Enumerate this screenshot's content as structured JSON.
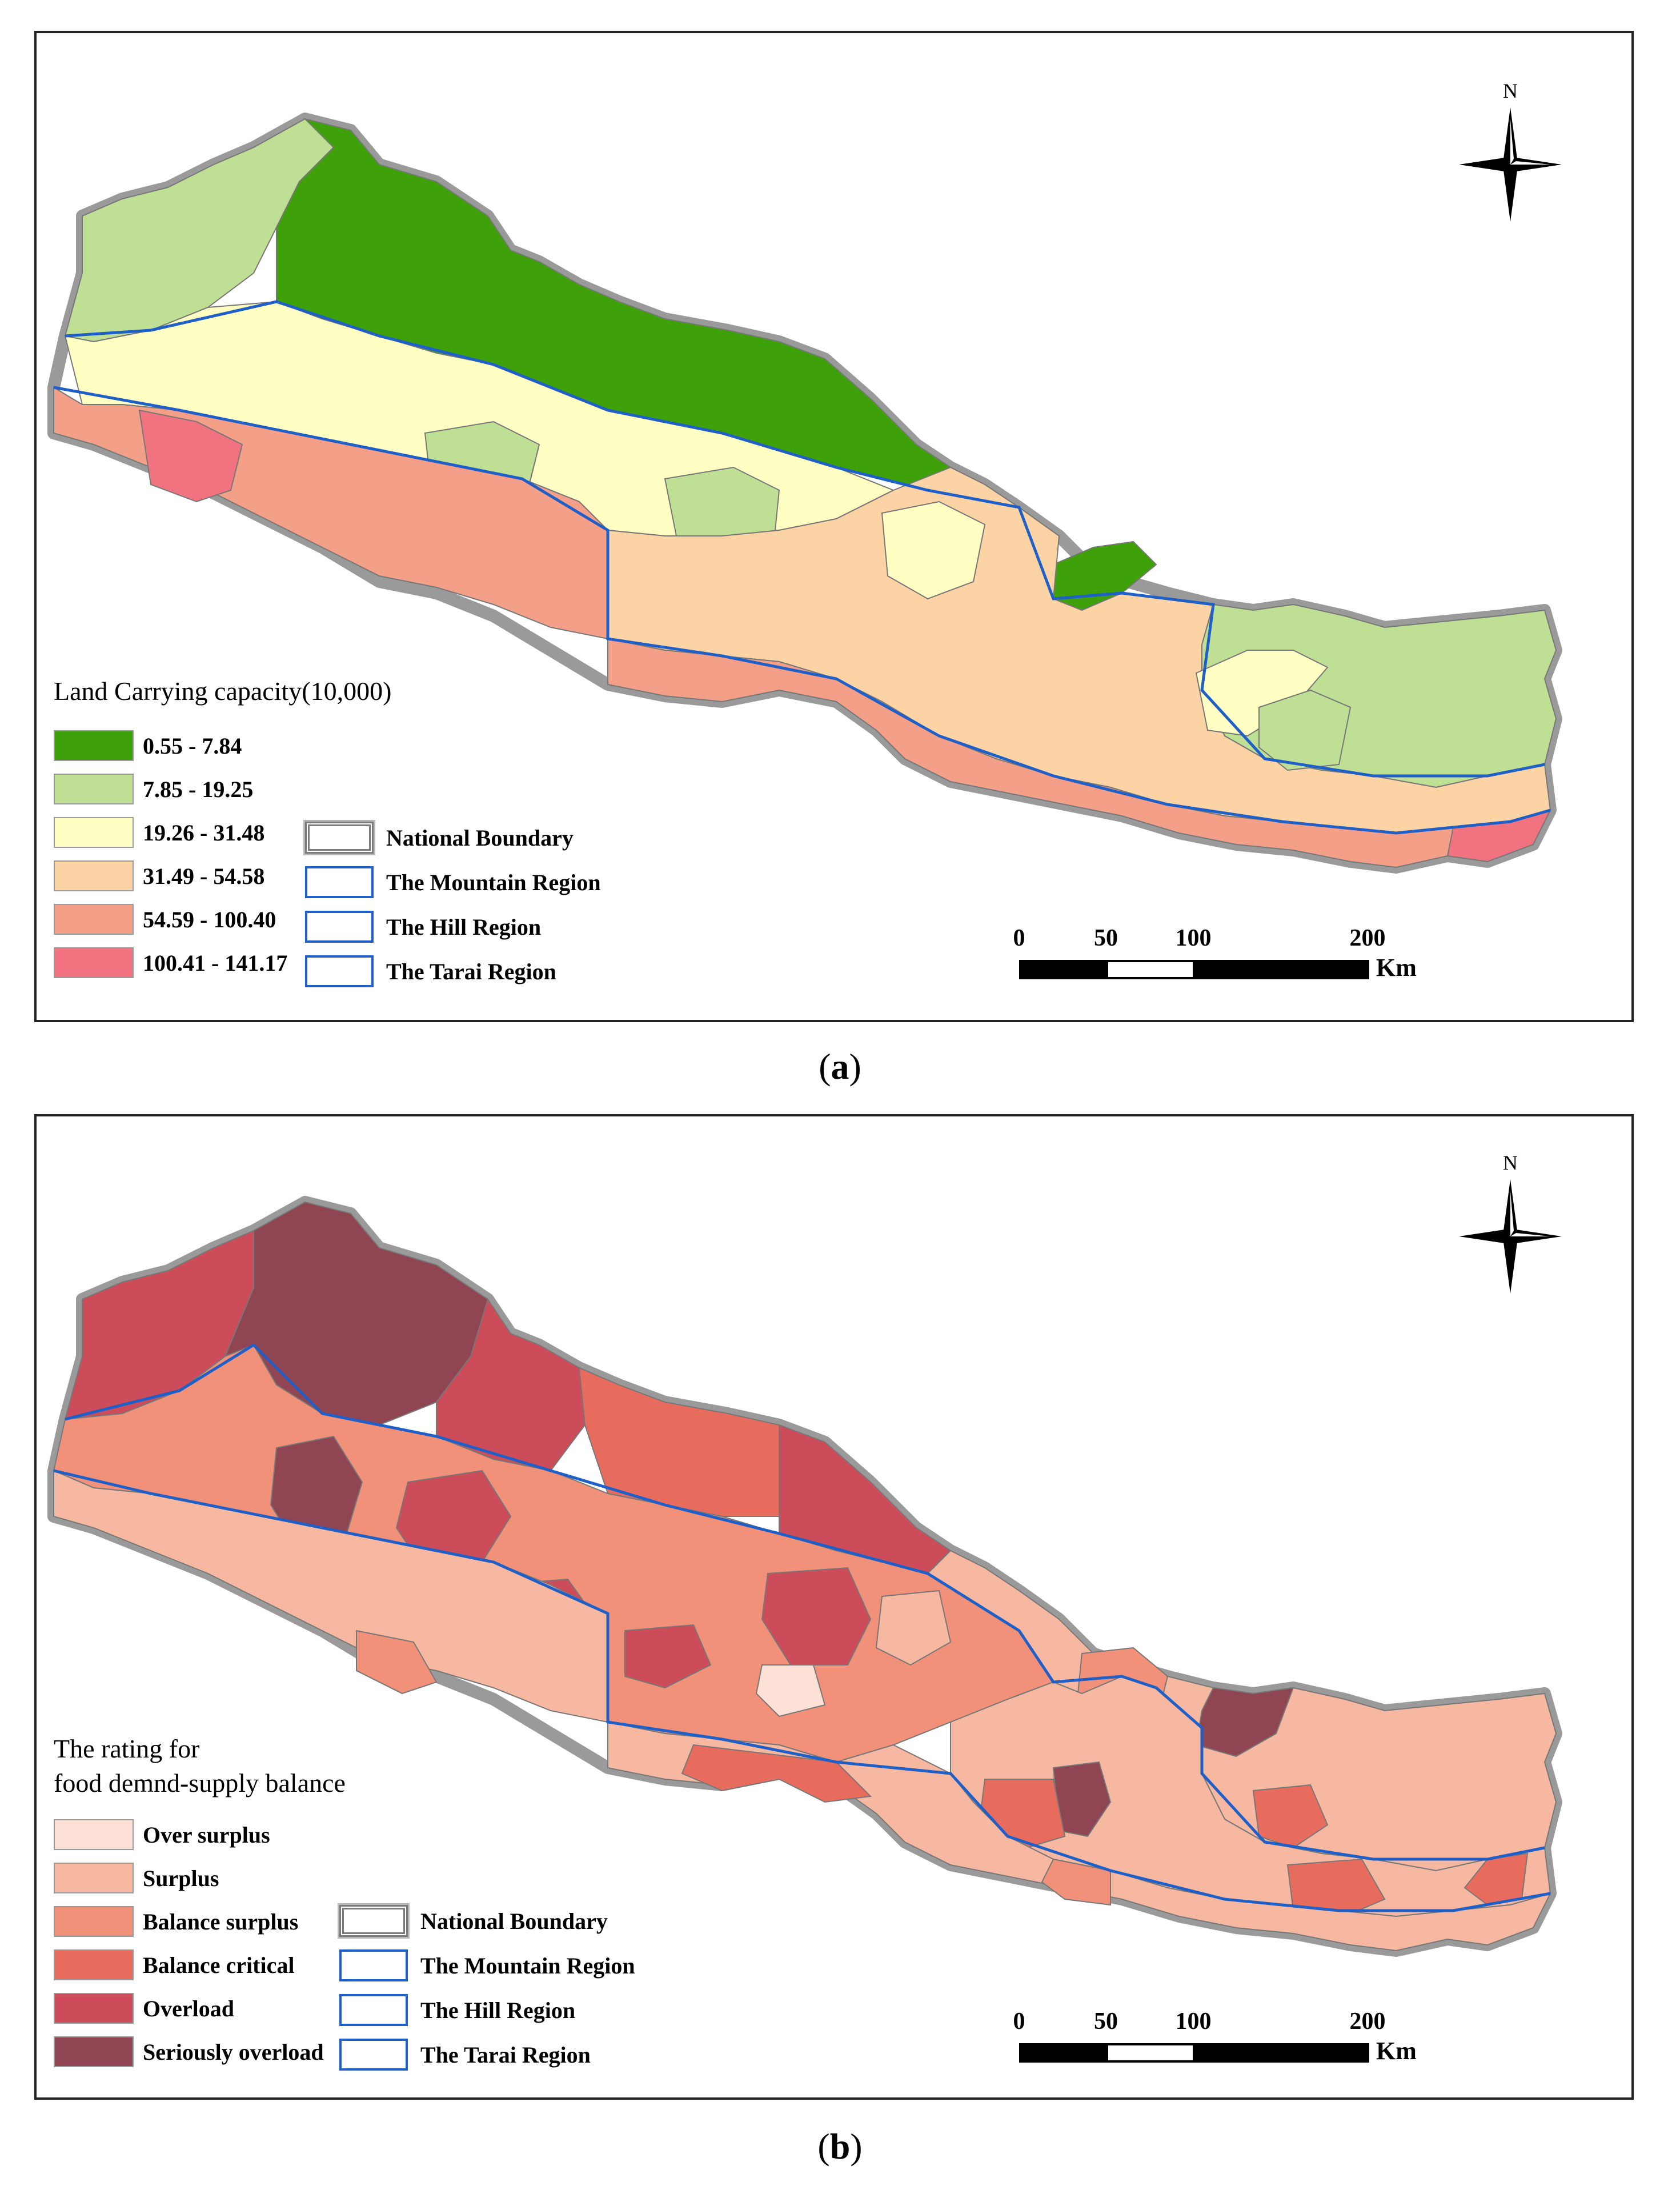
{
  "panel_a": {
    "legend_title": "Land Carrying capacity(10,000)",
    "classes": [
      {
        "label": "0.55 - 7.84",
        "color": "#3ea10a"
      },
      {
        "label": "7.85 - 19.25",
        "color": "#bfe094"
      },
      {
        "label": "19.26 - 31.48",
        "color": "#ffffc4"
      },
      {
        "label": "31.49 - 54.58",
        "color": "#fcd3a4"
      },
      {
        "label": "54.59 - 100.40",
        "color": "#f4a088"
      },
      {
        "label": "100.41 - 141.17",
        "color": "#f27380"
      }
    ],
    "caption": "a"
  },
  "panel_b": {
    "legend_title_line1": "The rating for",
    "legend_title_line2": "food demnd-supply balance",
    "classes": [
      {
        "label": "Over surplus",
        "color": "#fde0d6"
      },
      {
        "label": "Surplus",
        "color": "#f7b8a1"
      },
      {
        "label": "Balance surplus",
        "color": "#f19179"
      },
      {
        "label": "Balance critical",
        "color": "#e86c5e"
      },
      {
        "label": "Overload",
        "color": "#cc4d59"
      },
      {
        "label": "Seriously overload",
        "color": "#904552"
      }
    ],
    "caption": "b"
  },
  "reference_layers": [
    {
      "label": "National Boundary",
      "style": "national"
    },
    {
      "label": "The Mountain Region",
      "style": "region"
    },
    {
      "label": "The Hill Region",
      "style": "region"
    },
    {
      "label": "The Tarai Region",
      "style": "region"
    }
  ],
  "scale_bar": {
    "ticks": [
      "0",
      "50",
      "100",
      "200"
    ],
    "unit": "Km"
  },
  "north_arrow": {
    "label": "N"
  },
  "colors": {
    "region_line": "#1f5fc8",
    "boundary": "#8c8c8c"
  }
}
